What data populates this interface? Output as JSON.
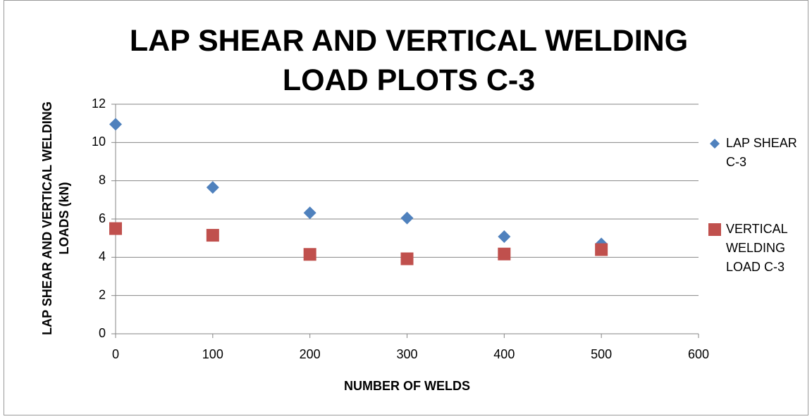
{
  "chart_data": {
    "type": "scatter",
    "title": "LAP SHEAR AND VERTICAL WELDING LOAD PLOTS C-3",
    "x_label": "NUMBER OF WELDS",
    "y_label": "LAP SHEAR AND VERTICAL WELDING LOADS (kN)",
    "series": [
      {
        "name": "LAP SHEAR C-3",
        "color": "#4f81bd",
        "marker": "diamond",
        "x": [
          0,
          100,
          200,
          300,
          400,
          500
        ],
        "values": [
          10.95,
          7.65,
          6.32,
          6.05,
          5.08,
          4.7
        ]
      },
      {
        "name": "VERTICAL WELDING LOAD C-3",
        "color": "#c0504d",
        "marker": "square",
        "x": [
          0,
          100,
          200,
          300,
          400,
          500
        ],
        "values": [
          5.5,
          5.15,
          4.15,
          3.92,
          4.17,
          4.4
        ]
      }
    ],
    "xlim": [
      0,
      600
    ],
    "xticks": [
      0,
      100,
      200,
      300,
      400,
      500,
      600
    ],
    "ylim": [
      0,
      12
    ],
    "yticks": [
      0,
      2,
      4,
      6,
      8,
      10,
      12
    ],
    "grid": true,
    "legend": "right"
  }
}
